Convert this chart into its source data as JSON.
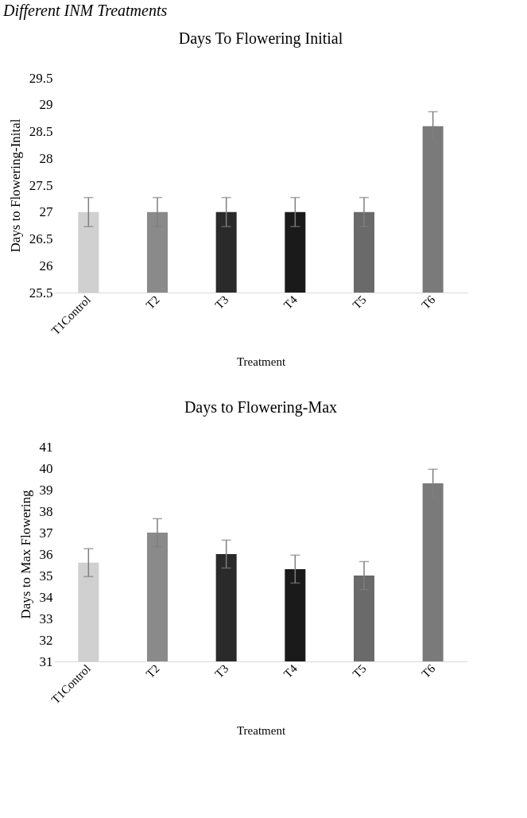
{
  "chart_data": [
    {
      "type": "bar",
      "title": "Days To Flowering Initial",
      "xlabel": "Treatment",
      "ylabel": "Days to Flowering-Inital",
      "annotations": [
        "Different INM Treatments"
      ],
      "categories": [
        "T1Control",
        "T2",
        "T3",
        "T4",
        "T5",
        "T6"
      ],
      "values": [
        27,
        27,
        27,
        27,
        27,
        28.6
      ],
      "errors": [
        0.27,
        0.27,
        0.27,
        0.27,
        0.27,
        0.27
      ],
      "colors": [
        "#d0d0d0",
        "#8a8a8a",
        "#2a2a2a",
        "#1a1a1a",
        "#6a6a6a",
        "#7a7a7a"
      ],
      "ylim": [
        25.5,
        29.5
      ],
      "yticks": [
        25.5,
        26,
        26.5,
        27,
        27.5,
        28,
        28.5,
        29,
        29.5
      ],
      "grid": false
    },
    {
      "type": "bar",
      "title": "Days to Flowering-Max",
      "xlabel": "Treatment",
      "ylabel": "Days to Max Flowering",
      "categories": [
        "T1Control",
        "T2",
        "T3",
        "T4",
        "T5",
        "T6"
      ],
      "values": [
        35.6,
        37.0,
        36.0,
        35.3,
        35.0,
        39.3
      ],
      "errors": [
        0.65,
        0.65,
        0.65,
        0.65,
        0.65,
        0.65
      ],
      "colors": [
        "#d0d0d0",
        "#8a8a8a",
        "#2a2a2a",
        "#1a1a1a",
        "#6a6a6a",
        "#7a7a7a"
      ],
      "ylim": [
        31,
        41
      ],
      "yticks": [
        31,
        32,
        33,
        34,
        35,
        36,
        37,
        38,
        39,
        40,
        41
      ],
      "grid": false
    }
  ]
}
